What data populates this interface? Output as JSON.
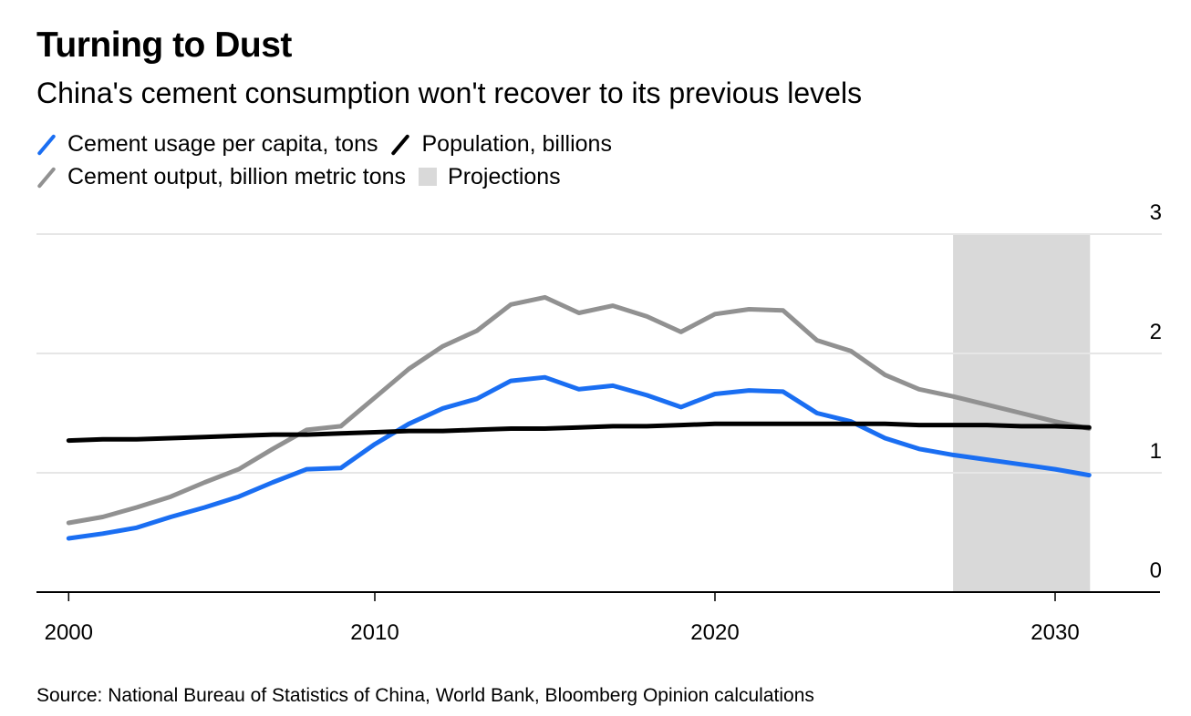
{
  "chart_data": {
    "type": "line",
    "title": "Turning to Dust",
    "subtitle": "China's cement consumption won't recover to its previous levels",
    "xlabel": "",
    "ylabel": "",
    "x_ticks": [
      {
        "label": "2000",
        "year": 2001
      },
      {
        "label": "2010",
        "year": 2010
      },
      {
        "label": "2020",
        "year": 2020
      },
      {
        "label": "2030",
        "year": 2030
      }
    ],
    "y_ticks": [
      0,
      1,
      2,
      3
    ],
    "ylim": [
      0,
      3
    ],
    "xlim": [
      2001,
      2031
    ],
    "grid": true,
    "y_axis_position": "right",
    "legend_position": "top-left",
    "x": [
      2001,
      2002,
      2003,
      2004,
      2005,
      2006,
      2007,
      2008,
      2009,
      2010,
      2011,
      2012,
      2013,
      2014,
      2015,
      2016,
      2017,
      2018,
      2019,
      2020,
      2021,
      2022,
      2023,
      2024,
      2025,
      2026,
      2027,
      2028,
      2029,
      2030,
      2031
    ],
    "series": [
      {
        "name": "Cement usage per capita, tons",
        "color": "#1a6ef2",
        "values": [
          0.45,
          0.49,
          0.54,
          0.63,
          0.71,
          0.8,
          0.92,
          1.03,
          1.04,
          1.24,
          1.41,
          1.54,
          1.62,
          1.77,
          1.8,
          1.7,
          1.73,
          1.65,
          1.55,
          1.66,
          1.69,
          1.68,
          1.5,
          1.43,
          1.29,
          1.2,
          1.15,
          1.11,
          1.07,
          1.03,
          0.98
        ]
      },
      {
        "name": "Population, billions",
        "color": "#000000",
        "values": [
          1.27,
          1.28,
          1.28,
          1.29,
          1.3,
          1.31,
          1.32,
          1.32,
          1.33,
          1.34,
          1.35,
          1.35,
          1.36,
          1.37,
          1.37,
          1.38,
          1.39,
          1.39,
          1.4,
          1.41,
          1.41,
          1.41,
          1.41,
          1.41,
          1.41,
          1.4,
          1.4,
          1.4,
          1.39,
          1.39,
          1.38
        ]
      },
      {
        "name": "Cement output, billion metric tons",
        "color": "#919191",
        "values": [
          0.58,
          0.63,
          0.71,
          0.8,
          0.92,
          1.03,
          1.2,
          1.36,
          1.39,
          1.63,
          1.87,
          2.06,
          2.19,
          2.41,
          2.47,
          2.34,
          2.4,
          2.31,
          2.18,
          2.33,
          2.37,
          2.36,
          2.11,
          2.02,
          1.82,
          1.7,
          1.64,
          1.57,
          1.5,
          1.43,
          1.37
        ]
      }
    ],
    "projection_range": [
      2027,
      2031
    ],
    "projection_label": "Projections",
    "projection_color": "#d9d9d9",
    "source": "Source: National Bureau of Statistics of China, World Bank, Bloomberg Opinion calculations"
  },
  "legend": {
    "rows": [
      [
        {
          "label": "Cement usage per capita, tons",
          "kind": "line",
          "color": "#1a6ef2"
        },
        {
          "label": "Population, billions",
          "kind": "line",
          "color": "#000000"
        }
      ],
      [
        {
          "label": "Cement output, billion metric tons",
          "kind": "line",
          "color": "#919191"
        },
        {
          "label": "Projections",
          "kind": "box",
          "color": "#d9d9d9"
        }
      ]
    ]
  }
}
